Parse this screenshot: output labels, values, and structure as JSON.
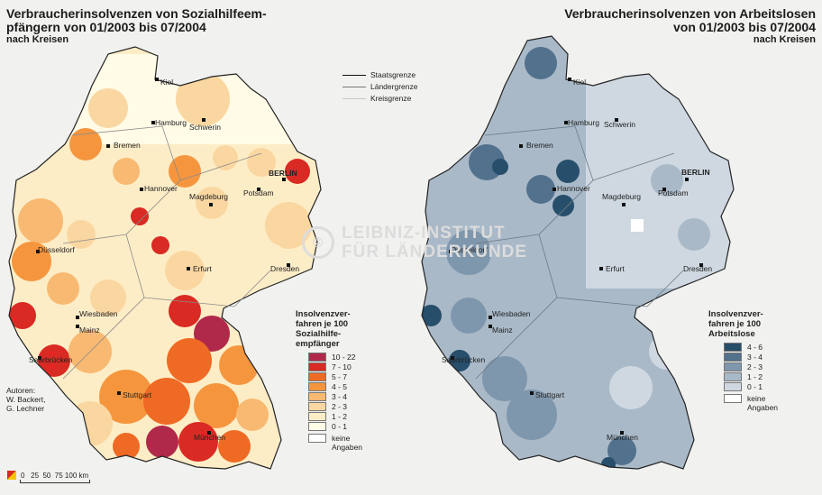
{
  "left_map": {
    "title_line1": "Verbraucherinsolvenzen von Sozialhilfeem-",
    "title_line2": "pfängern von 01/2003 bis 07/2004",
    "subtitle": "nach Kreisen",
    "legend_title_1": "Insolvenzver-",
    "legend_title_2": "fahren je 100",
    "legend_title_3": "Sozialhilfe-",
    "legend_title_4": "empfänger",
    "legend": [
      {
        "label": "10 - 22",
        "color": "#b0294a"
      },
      {
        "label": "7 - 10",
        "color": "#d92a23"
      },
      {
        "label": "5 - 7",
        "color": "#ef6a24"
      },
      {
        "label": "4 - 5",
        "color": "#f5963f"
      },
      {
        "label": "3 - 4",
        "color": "#f8b972"
      },
      {
        "label": "2 - 3",
        "color": "#fad7a1"
      },
      {
        "label": "1 - 2",
        "color": "#fdedc6"
      },
      {
        "label": "0 - 1",
        "color": "#fffbe6"
      }
    ],
    "no_data_1": "keine",
    "no_data_2": "Angaben"
  },
  "right_map": {
    "title_line1": "Verbraucherinsolvenzen von Arbeitslosen",
    "title_line2": "von 01/2003 bis 07/2004",
    "subtitle": "nach Kreisen",
    "legend_title_1": "Insolvenzver-",
    "legend_title_2": "fahren je 100",
    "legend_title_3": "Arbeitslose",
    "legend": [
      {
        "label": "4 - 6",
        "color": "#274e6a"
      },
      {
        "label": "3 - 4",
        "color": "#52718c"
      },
      {
        "label": "2 - 3",
        "color": "#7f97ad"
      },
      {
        "label": "1 - 2",
        "color": "#a9b9c8"
      },
      {
        "label": "0 - 1",
        "color": "#cfd8e1"
      }
    ],
    "no_data_1": "keine",
    "no_data_2": "Angaben"
  },
  "boundary_legend": {
    "staatsgrenze": "Staatsgrenze",
    "laendergrenze": "Ländergrenze",
    "kreisgrenze": "Kreisgrenze"
  },
  "cities": {
    "kiel": "Kiel",
    "hamburg": "Hamburg",
    "schwerin": "Schwerin",
    "bremen": "Bremen",
    "berlin": "BERLIN",
    "potsdam": "Potsdam",
    "hannover": "Hannover",
    "magdeburg": "Magdeburg",
    "duesseldorf": "Düsseldorf",
    "erfurt": "Erfurt",
    "dresden": "Dresden",
    "wiesbaden": "Wiesbaden",
    "mainz": "Mainz",
    "saarbruecken": "Saarbrücken",
    "stuttgart": "Stuttgart",
    "muenchen": "München"
  },
  "authors": {
    "line1": "Autoren:",
    "line2": "W. Backert,",
    "line3": "G. Lechner"
  },
  "scale": {
    "ticks": "0   25  50  75 100 km"
  },
  "watermark": {
    "line1": "LEIBNIZ-INSTITUT",
    "line2": "FÜR LÄNDERKUNDE"
  }
}
